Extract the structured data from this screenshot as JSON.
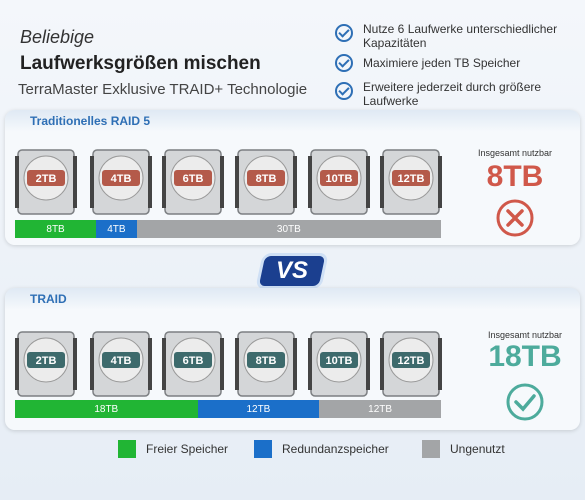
{
  "header": {
    "intro": "Beliebige",
    "title": "Laufwerksgrößen mischen",
    "subtitle": "TerraMaster Exklusive TRAID+ Technologie"
  },
  "features": [
    "Nutze 6 Laufwerke unterschiedlicher Kapazitäten",
    "Maximiere jeden TB Speicher",
    "Erweitere jederzeit durch größere Laufwerke"
  ],
  "panels": [
    {
      "title": "Traditionelles RAID 5",
      "drives": [
        "2TB",
        "4TB",
        "6TB",
        "8TB",
        "10TB",
        "12TB"
      ],
      "bar": [
        {
          "label": "8TB",
          "kind": "free"
        },
        {
          "label": "4TB",
          "kind": "redundant"
        },
        {
          "label": "30TB",
          "kind": "unused"
        }
      ],
      "usable_label": "Insgesamt nutzbar",
      "usable": "8TB"
    },
    {
      "title": "TRAID",
      "drives": [
        "2TB",
        "4TB",
        "6TB",
        "8TB",
        "10TB",
        "12TB"
      ],
      "bar": [
        {
          "label": "18TB",
          "kind": "free"
        },
        {
          "label": "12TB",
          "kind": "redundant"
        },
        {
          "label": "12TB",
          "kind": "unused"
        }
      ],
      "usable_label": "Insgesamt nutzbar",
      "usable": "18TB"
    }
  ],
  "vs": "VS",
  "legend": [
    {
      "label": "Freier Speicher",
      "kind": "free"
    },
    {
      "label": "Redundanzspeicher",
      "kind": "redundant"
    },
    {
      "label": "Ungenutzt",
      "kind": "unused"
    }
  ]
}
